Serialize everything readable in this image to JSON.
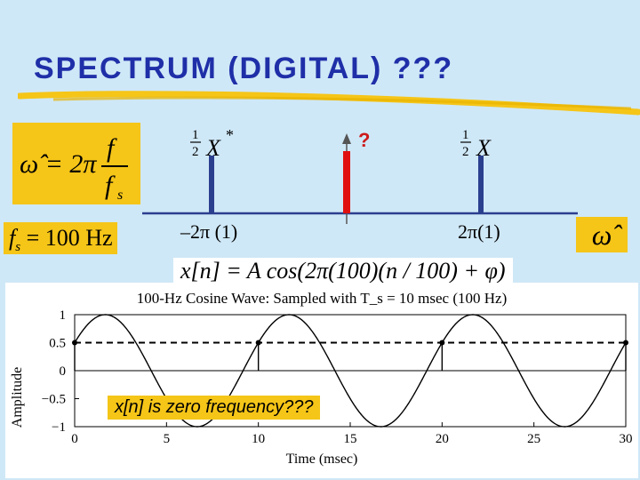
{
  "slide": {
    "title": "SPECTRUM (DIGITAL) ???",
    "omega_formula": {
      "lhs": "ω̂ = 2π",
      "num": "f",
      "den": "f",
      "den_sub": "s"
    },
    "fs_formula": {
      "text": "f",
      "sub": "s",
      "rest": " = 100 Hz"
    },
    "axis_symbol": "ω̂",
    "left_line": {
      "coef_num": "1",
      "coef_den": "2",
      "symbol": "X",
      "sup": "*",
      "position_label": "–2π (1)"
    },
    "right_line": {
      "coef_num": "1",
      "coef_den": "2",
      "symbol": "X",
      "position_label": "2π(1)"
    },
    "center_mark": "?",
    "signal_equation": "x[n] = A cos(2π(100)(n / 100) + φ)",
    "zero_freq_note": "x[n] is zero frequency???",
    "colors": {
      "accent": "#f5c518",
      "title": "#1f2fa8",
      "red_line": "#e01010",
      "spectral_line": "#2b3f8f"
    }
  },
  "chart_data": {
    "type": "line",
    "title": "100-Hz Cosine Wave: Sampled with T_s = 10 msec (100 Hz)",
    "xlabel": "Time (msec)",
    "ylabel": "Amplitude",
    "xlim": [
      0,
      30
    ],
    "ylim": [
      -1,
      1
    ],
    "x_ticks": [
      "0",
      "5",
      "10",
      "15",
      "20",
      "25",
      "30"
    ],
    "y_ticks": [
      "1",
      "0.5",
      "0",
      "−0.5",
      "−1"
    ],
    "series": [
      {
        "kind": "continuous",
        "amplitude": 1,
        "frequency_hz": 100,
        "phase_rad": -1.0472
      },
      {
        "kind": "samples",
        "x": [
          0,
          10,
          20,
          30
        ],
        "y": [
          0.5,
          0.5,
          0.5,
          0.5
        ]
      },
      {
        "kind": "dashed",
        "y": 0.5
      }
    ]
  }
}
